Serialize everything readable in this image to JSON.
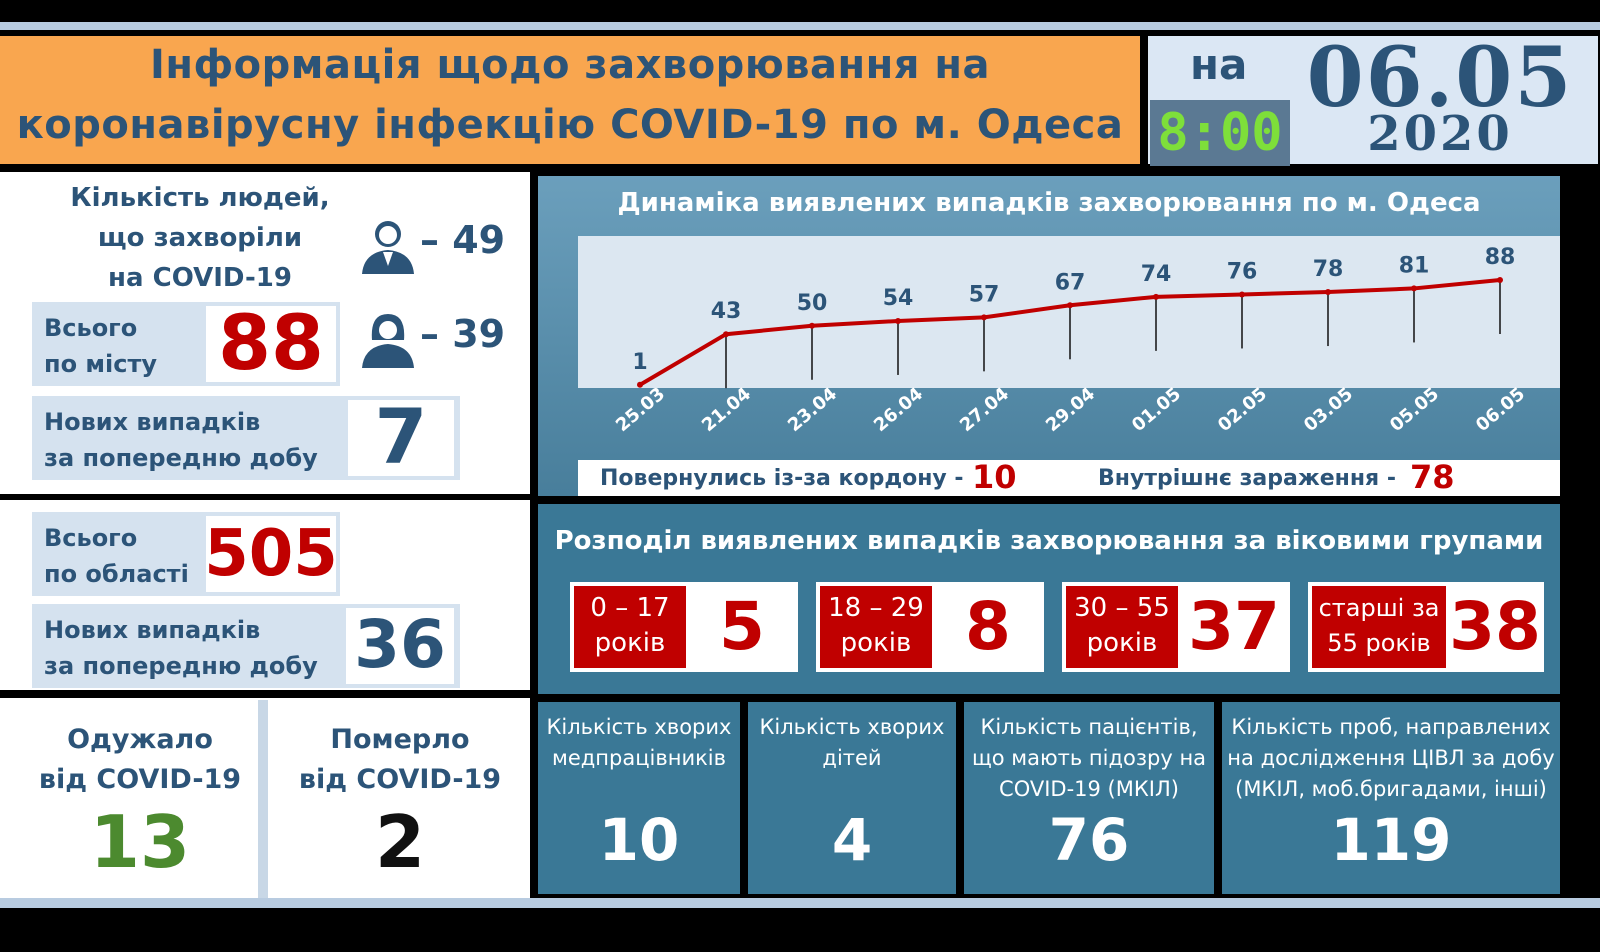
{
  "header": {
    "title_line1": "Інформація щодо захворювання на",
    "title_line2": "коронавірусну інфекцію COVID-19 по м. Одеса",
    "na_label": "на",
    "time": "8:00",
    "date_dm": "06.05",
    "date_year": "2020"
  },
  "city": {
    "sick_label_l1": "Кількість людей,",
    "sick_label_l2": "що захворіли",
    "sick_label_l3": "на COVID-19",
    "men_icon": "man-icon",
    "women_icon": "woman-icon",
    "men": "– 49",
    "women": "– 39",
    "total_label_l1": "Всього",
    "total_label_l2": "по місту",
    "total": "88",
    "new_label_l1": "Нових випадків",
    "new_label_l2": "за попередню добу",
    "new": "7"
  },
  "region": {
    "total_label_l1": "Всього",
    "total_label_l2": "по області",
    "total": "505",
    "new_label_l1": "Нових випадків",
    "new_label_l2": "за попередню добу",
    "new": "36"
  },
  "outcomes": {
    "recovered_l1": "Одужало",
    "recovered_l2": "від COVID-19",
    "recovered": "13",
    "died_l1": "Померло",
    "died_l2": "від COVID-19",
    "died": "2"
  },
  "chart_data": {
    "type": "line",
    "title": "Динаміка виявлених випадків захворювання по м. Одеса",
    "categories": [
      "25.03",
      "21.04",
      "23.04",
      "26.04",
      "27.04",
      "29.04",
      "01.05",
      "02.05",
      "03.05",
      "05.05",
      "06.05"
    ],
    "series": [
      {
        "values": [
          1,
          43,
          50,
          54,
          57,
          67,
          74,
          76,
          78,
          81,
          88
        ]
      }
    ],
    "color": "#c00000",
    "grid": false,
    "legend": "none"
  },
  "origin": {
    "border_label": "Повернулись із-за кордону -",
    "border_value": "10",
    "internal_label": "Внутрішнє зараження -",
    "internal_value": "78"
  },
  "age": {
    "title": "Розподіл виявлених випадків захворювання за віковими групами",
    "groups": [
      {
        "l1": "0 – 17",
        "l2": "років",
        "value": "5"
      },
      {
        "l1": "18 – 29",
        "l2": "років",
        "value": "8"
      },
      {
        "l1": "30 – 55",
        "l2": "років",
        "value": "37"
      },
      {
        "l1": "старші за",
        "l2": "55 років",
        "value": "38"
      }
    ]
  },
  "stats": [
    {
      "l1": "Кількість хворих",
      "l2": "медпрацівників",
      "l3": "",
      "value": "10"
    },
    {
      "l1": "Кількість хворих",
      "l2": "дітей",
      "l3": "",
      "value": "4"
    },
    {
      "l1": "Кількість пацієнтів,",
      "l2": "що мають підозру на",
      "l3": "COVID-19 (МКІЛ)",
      "value": "76"
    },
    {
      "l1": "Кількість проб, направлених",
      "l2": "на дослідження ЦІВЛ за добу",
      "l3": "(МКІЛ, моб.бригадами, інші)",
      "value": "119"
    }
  ]
}
